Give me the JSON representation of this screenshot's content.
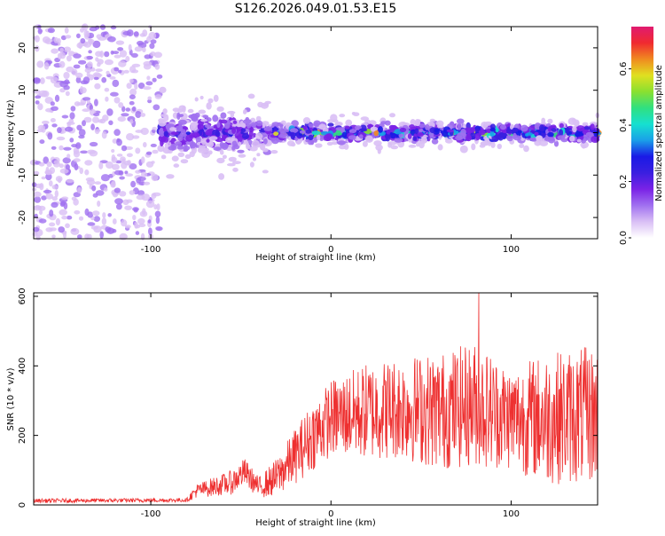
{
  "page_title": "S126.2026.049.01.53.E15",
  "colors": {
    "snr_line": "#ee3030",
    "axis": "#000000",
    "colormap": [
      "#ffffff",
      "#d9bff5",
      "#a070f0",
      "#7a22e6",
      "#3a1fe0",
      "#1a1ae6",
      "#1aa0e8",
      "#16e0d0",
      "#30e080",
      "#8ae030",
      "#e0e020",
      "#f08a20",
      "#f02a30",
      "#e01a70"
    ]
  },
  "chart_data": [
    {
      "id": "spectrogram",
      "type": "heatmap",
      "title": "S126.2026.049.01.53.E15",
      "xlabel": "Height of straight line (km)",
      "ylabel": "Frequency (Hz)",
      "xlim": [
        -165,
        148
      ],
      "ylim": [
        -25,
        25
      ],
      "xticks": [
        -100,
        0,
        100
      ],
      "xtick_labels": [
        "-100",
        "0",
        "100"
      ],
      "yticks": [
        -20,
        -10,
        0,
        10,
        20
      ],
      "ytick_labels": [
        "-20",
        "-10",
        "0",
        "10",
        "20"
      ],
      "colorbar": {
        "label": "Normalized spectral amplitude",
        "range": [
          0,
          0.75
        ],
        "ticks": [
          0.0,
          0.2,
          0.4,
          0.6
        ],
        "tick_labels": [
          "0.0",
          "0.2",
          "0.4",
          "0.6"
        ]
      },
      "description_regions": [
        {
          "x_range": [
            -165,
            -95
          ],
          "freq_spread": 25,
          "amplitude": 0.12
        },
        {
          "x_range": [
            -95,
            -35
          ],
          "freq_spread": 8,
          "amplitude": 0.28
        },
        {
          "x_range": [
            -35,
            148
          ],
          "freq_spread": 3,
          "amplitude": 0.42
        }
      ]
    },
    {
      "id": "snr",
      "type": "line",
      "xlabel": "Height of straight line (km)",
      "ylabel": "SNR (10 * v/v)",
      "xlim": [
        -165,
        148
      ],
      "ylim": [
        0,
        610
      ],
      "xticks": [
        -100,
        0,
        100
      ],
      "xtick_labels": [
        "-100",
        "0",
        "100"
      ],
      "yticks": [
        0,
        200,
        400,
        600
      ],
      "ytick_labels": [
        "0",
        "200",
        "400",
        "600"
      ],
      "envelope": {
        "x": [
          -165,
          -80,
          -75,
          -55,
          -48,
          -40,
          -30,
          -20,
          -10,
          0,
          20,
          40,
          60,
          80,
          100,
          120,
          148
        ],
        "mean": [
          12,
          14,
          40,
          65,
          95,
          50,
          80,
          140,
          200,
          250,
          270,
          280,
          270,
          290,
          250,
          250,
          260
        ],
        "amp": [
          6,
          6,
          20,
          35,
          40,
          30,
          55,
          80,
          100,
          110,
          140,
          150,
          170,
          180,
          150,
          190,
          200
        ]
      },
      "peak": {
        "x": 82,
        "y": 610
      }
    }
  ]
}
